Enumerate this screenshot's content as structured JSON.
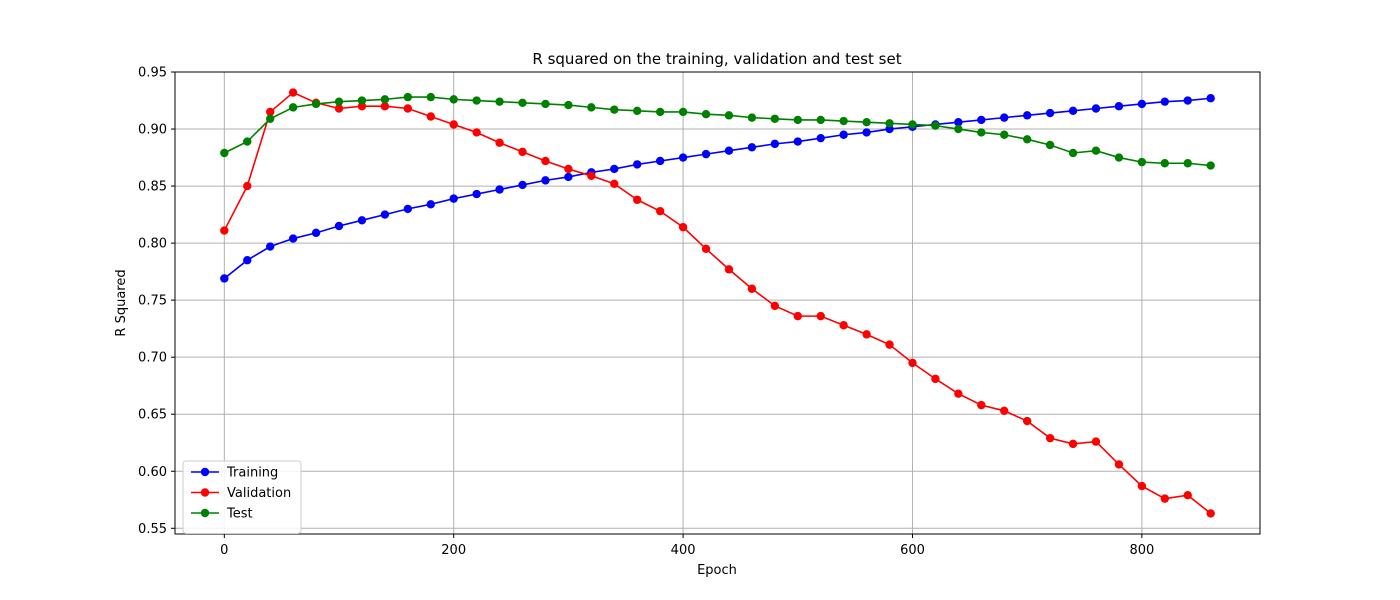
{
  "chart_data": {
    "type": "line",
    "title": "R squared on the training, validation and test set",
    "xlabel": "Epoch",
    "ylabel": "R Squared",
    "xlim": [
      -43,
      903
    ],
    "ylim": [
      0.545,
      0.95
    ],
    "xticks": [
      0,
      200,
      400,
      600,
      800
    ],
    "xtick_labels": [
      "0",
      "200",
      "400",
      "600",
      "800"
    ],
    "yticks": [
      0.55,
      0.6,
      0.65,
      0.7,
      0.75,
      0.8,
      0.85,
      0.9,
      0.95
    ],
    "ytick_labels": [
      "0.55",
      "0.60",
      "0.65",
      "0.70",
      "0.75",
      "0.80",
      "0.85",
      "0.90",
      "0.95"
    ],
    "grid": true,
    "legend_position": "lower-left",
    "x": [
      0,
      20,
      40,
      60,
      80,
      100,
      120,
      140,
      160,
      180,
      200,
      220,
      240,
      260,
      280,
      300,
      320,
      340,
      360,
      380,
      400,
      420,
      440,
      460,
      480,
      500,
      520,
      540,
      560,
      580,
      600,
      620,
      640,
      660,
      680,
      700,
      720,
      740,
      760,
      780,
      800,
      820,
      840,
      860
    ],
    "series": [
      {
        "name": "Training",
        "color": "#0000ff",
        "values": [
          0.769,
          0.785,
          0.797,
          0.804,
          0.809,
          0.815,
          0.82,
          0.825,
          0.83,
          0.834,
          0.839,
          0.843,
          0.847,
          0.851,
          0.855,
          0.858,
          0.862,
          0.865,
          0.869,
          0.872,
          0.875,
          0.878,
          0.881,
          0.884,
          0.887,
          0.889,
          0.892,
          0.895,
          0.897,
          0.9,
          0.902,
          0.904,
          0.906,
          0.908,
          0.91,
          0.912,
          0.914,
          0.916,
          0.918,
          0.92,
          0.922,
          0.924,
          0.925,
          0.927
        ]
      },
      {
        "name": "Validation",
        "color": "#ff0000",
        "values": [
          0.811,
          0.85,
          0.915,
          0.932,
          0.923,
          0.918,
          0.92,
          0.92,
          0.918,
          0.911,
          0.904,
          0.897,
          0.888,
          0.88,
          0.872,
          0.865,
          0.859,
          0.852,
          0.838,
          0.828,
          0.814,
          0.795,
          0.777,
          0.76,
          0.745,
          0.736,
          0.736,
          0.728,
          0.72,
          0.711,
          0.695,
          0.681,
          0.668,
          0.658,
          0.653,
          0.644,
          0.629,
          0.624,
          0.626,
          0.606,
          0.587,
          0.576,
          0.579,
          0.563
        ]
      },
      {
        "name": "Test",
        "color": "#008000",
        "values": [
          0.879,
          0.889,
          0.909,
          0.919,
          0.922,
          0.924,
          0.925,
          0.926,
          0.928,
          0.928,
          0.926,
          0.925,
          0.924,
          0.923,
          0.922,
          0.921,
          0.919,
          0.917,
          0.916,
          0.915,
          0.915,
          0.913,
          0.912,
          0.91,
          0.909,
          0.908,
          0.908,
          0.907,
          0.906,
          0.905,
          0.904,
          0.903,
          0.9,
          0.897,
          0.895,
          0.891,
          0.886,
          0.879,
          0.881,
          0.875,
          0.871,
          0.87,
          0.87,
          0.868
        ]
      }
    ]
  }
}
